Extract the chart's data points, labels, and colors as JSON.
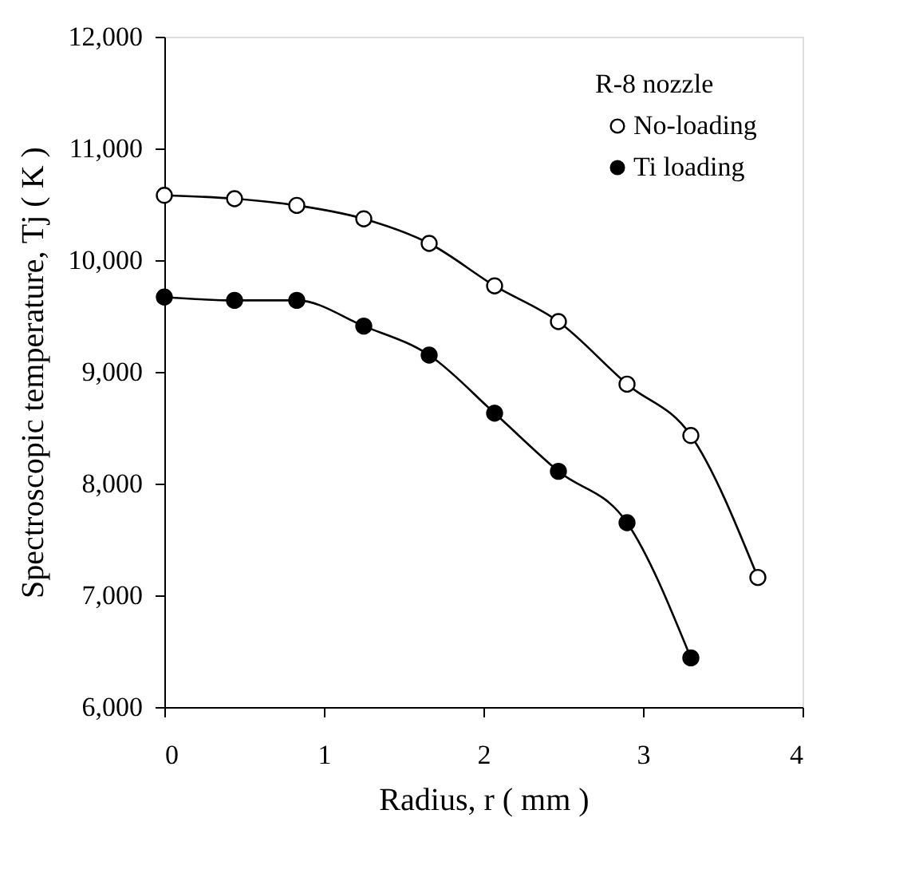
{
  "chart_data": {
    "type": "line",
    "xlabel": "Radius, r ( mm )",
    "ylabel": "Spectroscopic temperature, Tj ( K )",
    "legend_title": "R-8 nozzle",
    "xlim": [
      0,
      4
    ],
    "xticks": [
      0,
      1,
      2,
      3,
      4
    ],
    "ylim": [
      6000,
      12000
    ],
    "yticks": [
      {
        "value": 6000,
        "label": "6,000"
      },
      {
        "value": 7000,
        "label": "7,000"
      },
      {
        "value": 8000,
        "label": "8,000"
      },
      {
        "value": 9000,
        "label": "9,000"
      },
      {
        "value": 10000,
        "label": "10,000"
      },
      {
        "value": 11000,
        "label": "11,000"
      },
      {
        "value": 12000,
        "label": "12,000"
      }
    ],
    "grid": false,
    "legend": "top right",
    "marker": "circle",
    "line_style": "solid",
    "series": [
      {
        "name": "No-loading",
        "color": "#000000",
        "x": [
          0,
          0.44,
          0.83,
          1.25,
          1.66,
          2.07,
          2.47,
          2.9,
          3.3,
          3.72
        ],
        "values": [
          10580,
          10550,
          10490,
          10370,
          10150,
          9770,
          9450,
          8890,
          8430,
          7160
        ]
      },
      {
        "name": "Ti loading",
        "color": "#000000",
        "x": [
          0,
          0.44,
          0.83,
          1.25,
          1.66,
          2.07,
          2.47,
          2.9,
          3.3
        ],
        "values": [
          9670,
          9640,
          9640,
          9410,
          9150,
          8630,
          8110,
          7650,
          6440
        ]
      }
    ]
  }
}
